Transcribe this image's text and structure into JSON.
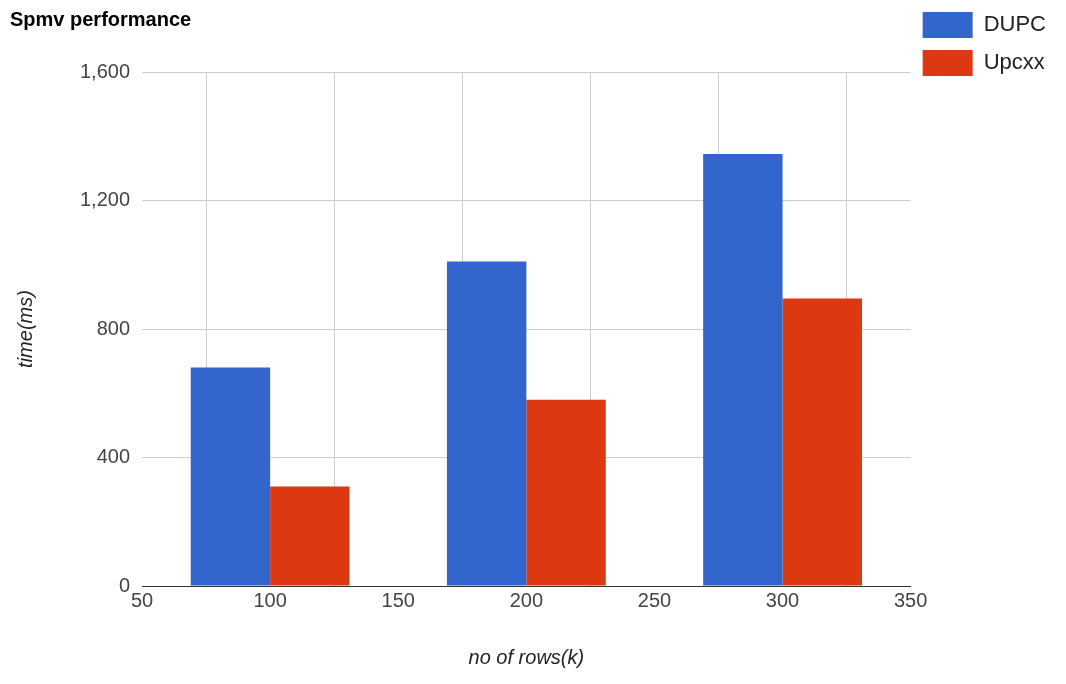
{
  "chart_data": {
    "type": "bar",
    "title": "Spmv performance",
    "xlabel": "no of rows(k)",
    "ylabel": "time(ms)",
    "x": [
      100,
      200,
      300
    ],
    "series": [
      {
        "name": "DUPC",
        "color": "#3366cc",
        "values": [
          680,
          1010,
          1345
        ]
      },
      {
        "name": "Upcxx",
        "color": "#dc3912",
        "values": [
          310,
          580,
          895
        ]
      }
    ],
    "xlim": [
      50,
      350
    ],
    "xticks": [
      50,
      100,
      150,
      200,
      250,
      300,
      350
    ],
    "ylim": [
      0,
      1600
    ],
    "yticks": [
      0,
      400,
      800,
      {
        "value": 1200,
        "label": "1,200"
      },
      {
        "value": 1600,
        "label": "1,600"
      }
    ],
    "grid": true,
    "legend": "top right"
  }
}
